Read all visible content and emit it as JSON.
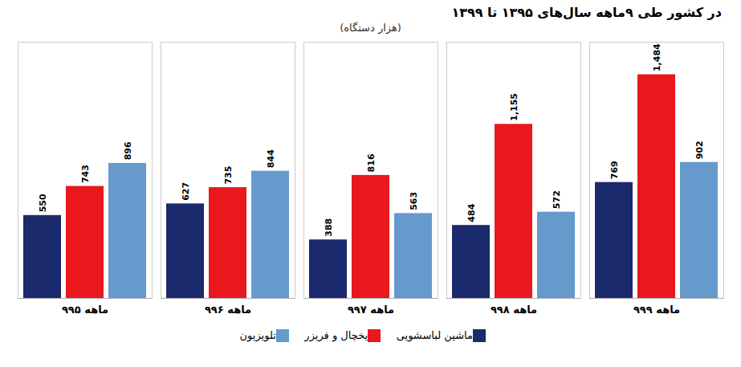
{
  "chart_data": {
    "type": "bar",
    "title": "در کشور طی ۹ماهه سال‌های ۱۳۹۵ تا ۱۳۹۹",
    "subtitle": "(هزار دستگاه)",
    "categories": [
      "۹ماهه ۹۵",
      "۹ماهه ۹۶",
      "۹ماهه ۹۷",
      "۹ماهه ۹۸",
      "۹ماهه ۹۹"
    ],
    "series": [
      {
        "name": "ماشین لباسشویی",
        "color": "#1a2a6c",
        "values": [
          550,
          627,
          388,
          484,
          769
        ],
        "value_labels": [
          "550",
          "627",
          "388",
          "484",
          "769"
        ]
      },
      {
        "name": "یخچال و فریزر",
        "color": "#e8181c",
        "values": [
          743,
          735,
          816,
          1155,
          1484
        ],
        "value_labels": [
          "743",
          "735",
          "816",
          "1,155",
          "1,484"
        ]
      },
      {
        "name": "تلویزیون",
        "color": "#6699cc",
        "values": [
          896,
          844,
          563,
          572,
          902
        ],
        "value_labels": [
          "896",
          "844",
          "563",
          "572",
          "902"
        ]
      }
    ],
    "ylim": [
      0,
      1700
    ],
    "grid": false,
    "legend": "bottom",
    "data_labels": true,
    "tick_labels": "x"
  }
}
